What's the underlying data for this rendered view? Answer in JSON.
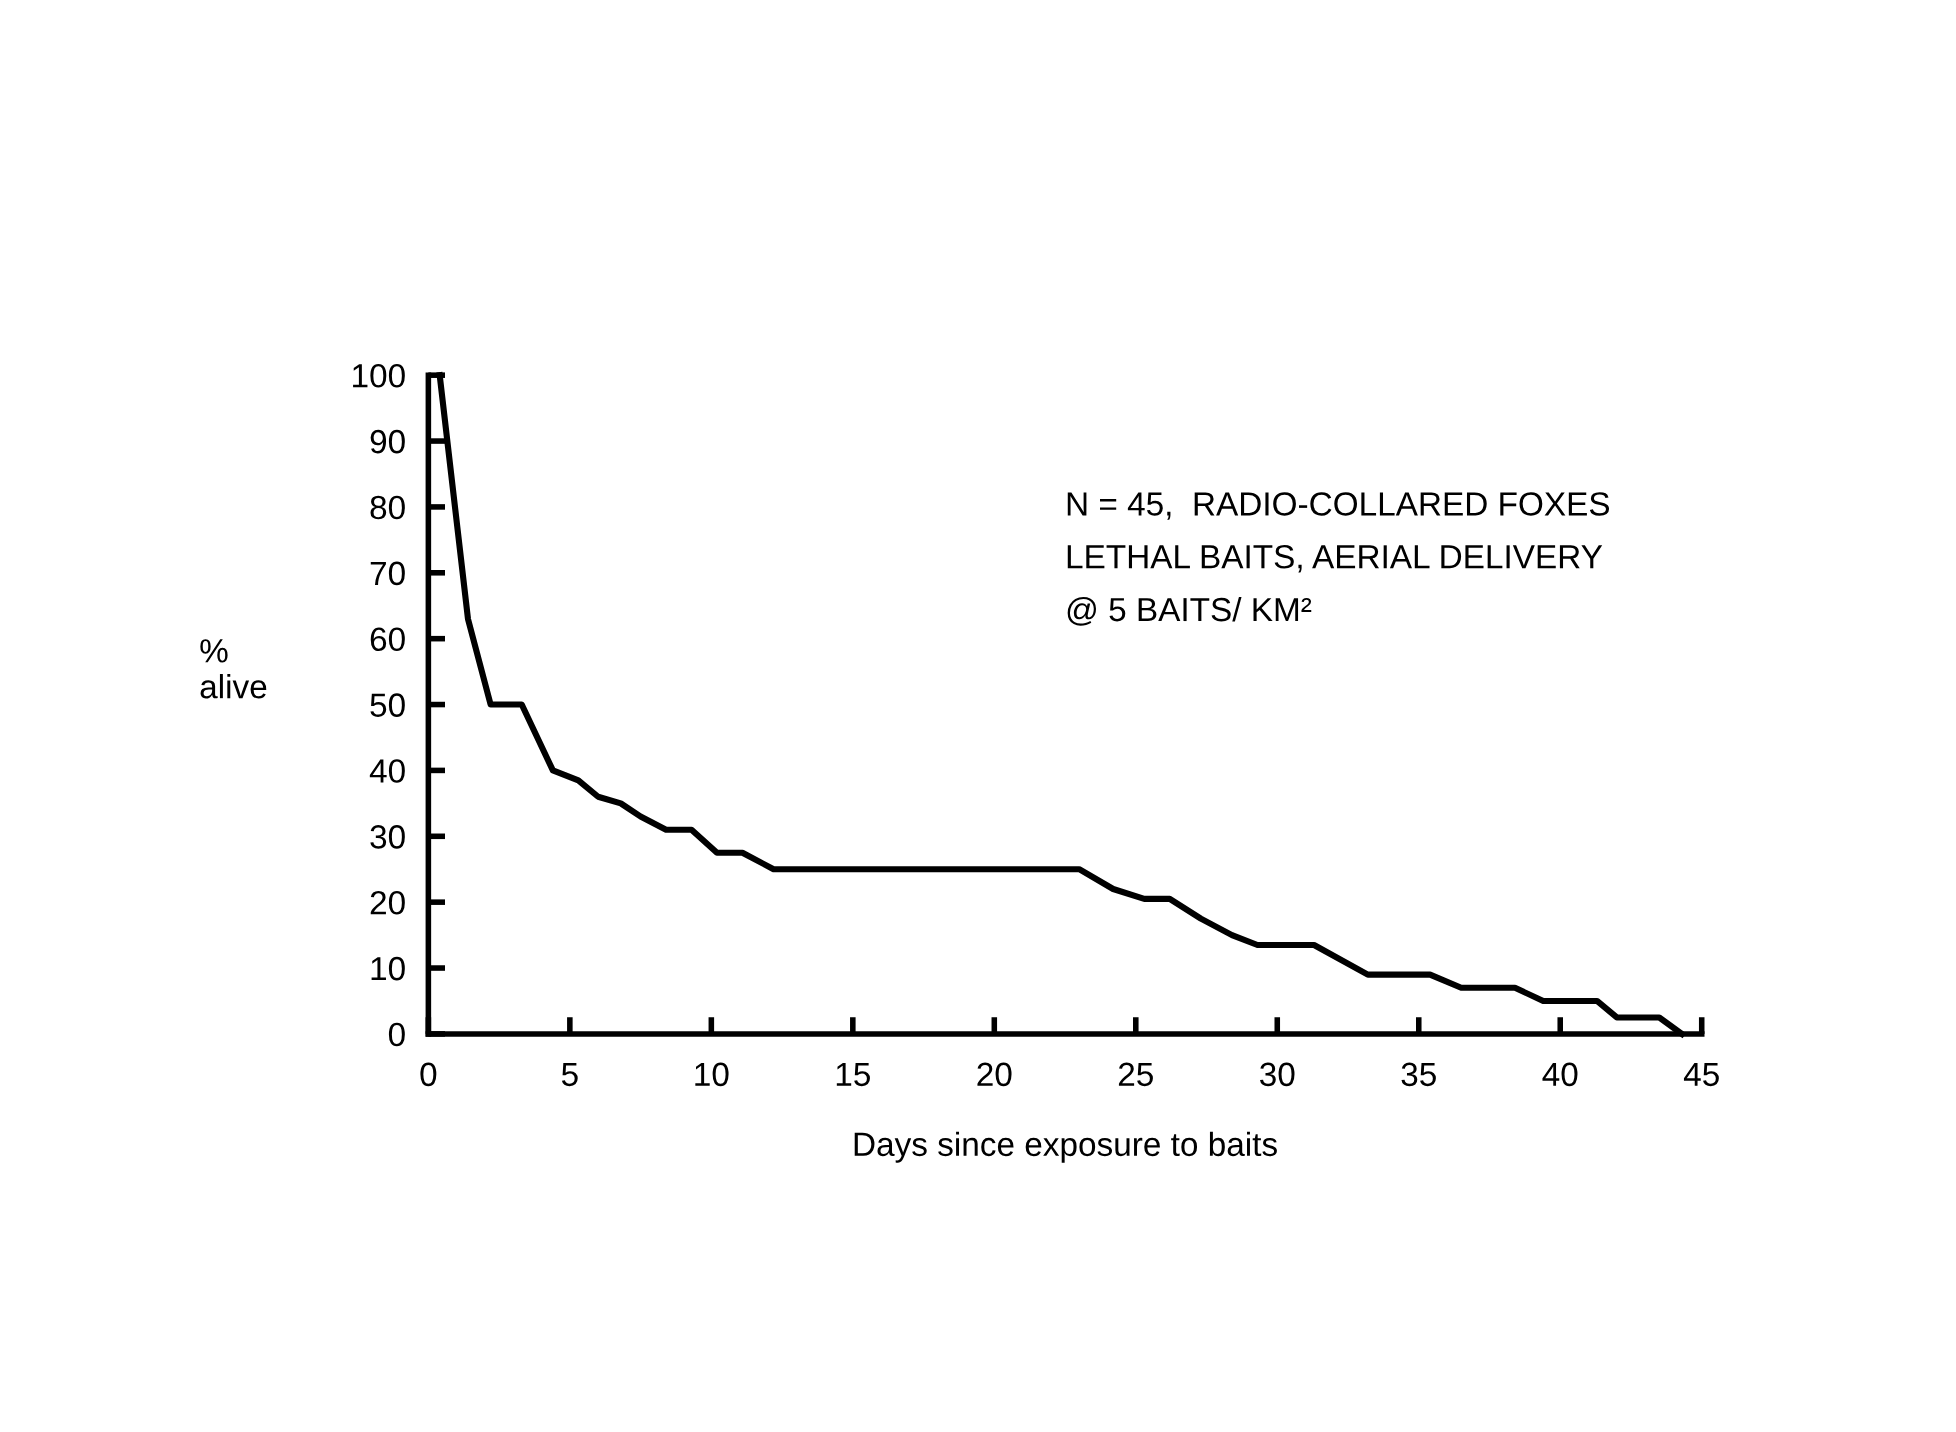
{
  "chart_data": {
    "type": "line",
    "xlabel": "Days since exposure to baits",
    "ylabel": "%\nalive",
    "annotations": [
      "N = 45,  RADIO-COLLARED FOXES\nLETHAL BAITS, AERIAL DELIVERY\n@ 5 BAITS/ KM²"
    ],
    "x": [
      0.4,
      1.4,
      2.2,
      3.3,
      4.4,
      5.3,
      6.0,
      6.8,
      7.5,
      8.4,
      9.3,
      10.2,
      11.1,
      12.2,
      23.0,
      24.2,
      25.3,
      26.2,
      27.3,
      28.4,
      29.3,
      31.3,
      33.2,
      35.4,
      36.5,
      38.4,
      39.4,
      41.3,
      42.0,
      43.5,
      44.3
    ],
    "series": [
      {
        "color": "#000000",
        "values": [
          100,
          63,
          50,
          50,
          40,
          38.5,
          36,
          35,
          33,
          31,
          31,
          27.5,
          27.5,
          25,
          25,
          22,
          20.5,
          20.5,
          17.5,
          15,
          13.5,
          13.5,
          9,
          9,
          7,
          7,
          5,
          5,
          2.5,
          2.5,
          0
        ]
      }
    ],
    "xlim": [
      0,
      45
    ],
    "ylim": [
      0,
      100
    ],
    "xticks": [
      0,
      5,
      10,
      15,
      20,
      25,
      30,
      35,
      40,
      45
    ],
    "yticks": [
      0,
      10,
      20,
      30,
      40,
      50,
      60,
      70,
      80,
      90,
      100
    ],
    "grid": false,
    "legend": false,
    "marker": "none",
    "line_style": "solid"
  }
}
